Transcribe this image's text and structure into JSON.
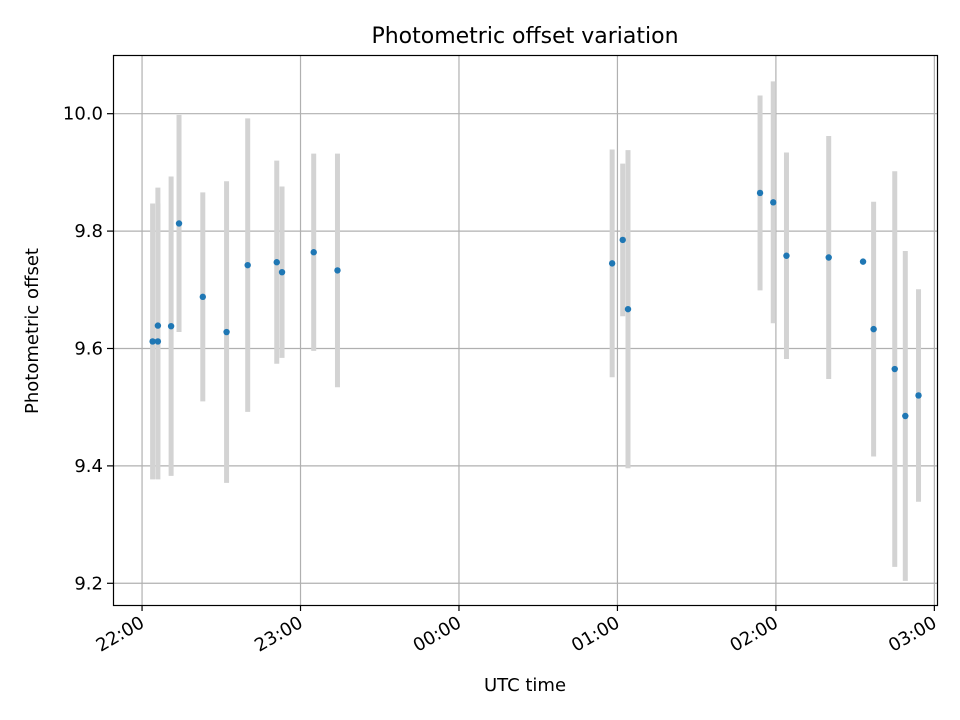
{
  "chart_data": {
    "type": "scatter",
    "title": "Photometric offset variation",
    "xlabel": "UTC time",
    "ylabel": "Photometric offset",
    "x_unit": "UTC HH:MM",
    "xlim": [
      "21:49",
      "03:01"
    ],
    "ylim": [
      9.163,
      10.1
    ],
    "x_ticks": [
      "22:00",
      "23:00",
      "00:00",
      "01:00",
      "02:00",
      "03:00"
    ],
    "y_ticks": [
      9.2,
      9.4,
      9.6,
      9.8,
      10.0
    ],
    "y_tick_labels": [
      "9.2",
      "9.4",
      "9.6",
      "9.8",
      "10.0"
    ],
    "grid": true,
    "legend": "none",
    "colors": {
      "points": "#1f77b4",
      "errorbars": "#d3d3d3",
      "grid": "#b0b0b0"
    },
    "series": [
      {
        "x": [
          "22:04",
          "22:06",
          "22:06",
          "22:11",
          "22:14",
          "22:23",
          "22:32",
          "22:40",
          "22:51",
          "22:53",
          "23:05",
          "23:14",
          "00:58",
          "01:02",
          "01:04",
          "01:54",
          "01:59",
          "02:04",
          "02:20",
          "02:33",
          "02:37",
          "02:45",
          "02:49",
          "02:54"
        ],
        "y": [
          9.612,
          9.612,
          9.639,
          9.638,
          9.813,
          9.688,
          9.628,
          9.742,
          9.747,
          9.73,
          9.764,
          9.733,
          9.745,
          9.785,
          9.667,
          9.865,
          9.849,
          9.758,
          9.755,
          9.748,
          9.633,
          9.565,
          9.485,
          9.52
        ],
        "yerr": [
          0.235,
          0.235,
          0.235,
          0.255,
          0.185,
          0.178,
          0.257,
          0.25,
          0.173,
          0.146,
          0.168,
          0.199,
          0.194,
          0.13,
          0.271,
          0.166,
          0.206,
          0.176,
          0.207,
          0.0,
          0.217,
          0.337,
          0.281,
          0.181
        ]
      }
    ]
  }
}
